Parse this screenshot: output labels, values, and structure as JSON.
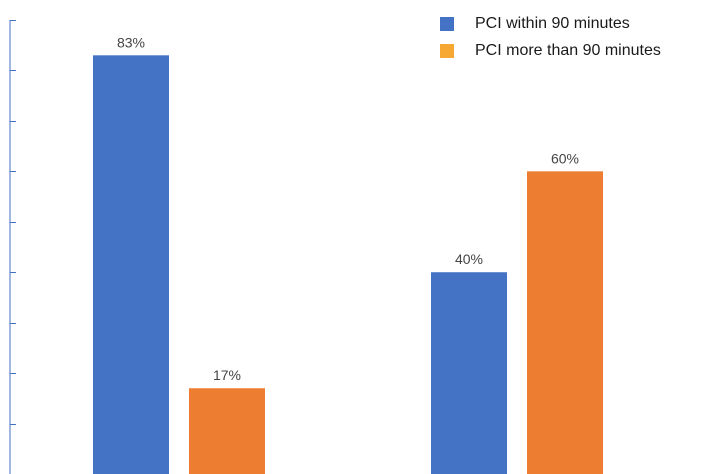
{
  "chart_data": {
    "type": "bar",
    "title": "",
    "xlabel": "",
    "ylabel": "",
    "categories": [
      "",
      ""
    ],
    "series": [
      {
        "name": "PCI within 90 minutes",
        "values": [
          83,
          40
        ],
        "labels": [
          "83%",
          "40%"
        ],
        "color": "#4472C4"
      },
      {
        "name": "PCI more than 90 minutes",
        "values": [
          17,
          60
        ],
        "labels": [
          "17%",
          "60%"
        ],
        "color": "#ED7D31"
      }
    ],
    "ylim": [
      0,
      90
    ],
    "yticks": [
      0,
      10,
      20,
      30,
      40,
      50,
      60,
      70,
      80,
      90
    ],
    "grid": false,
    "legend_position": "top-right",
    "legend_swatch_colors": [
      "#4472C4",
      "#F7A833"
    ],
    "axis_color": "#4472C4"
  }
}
